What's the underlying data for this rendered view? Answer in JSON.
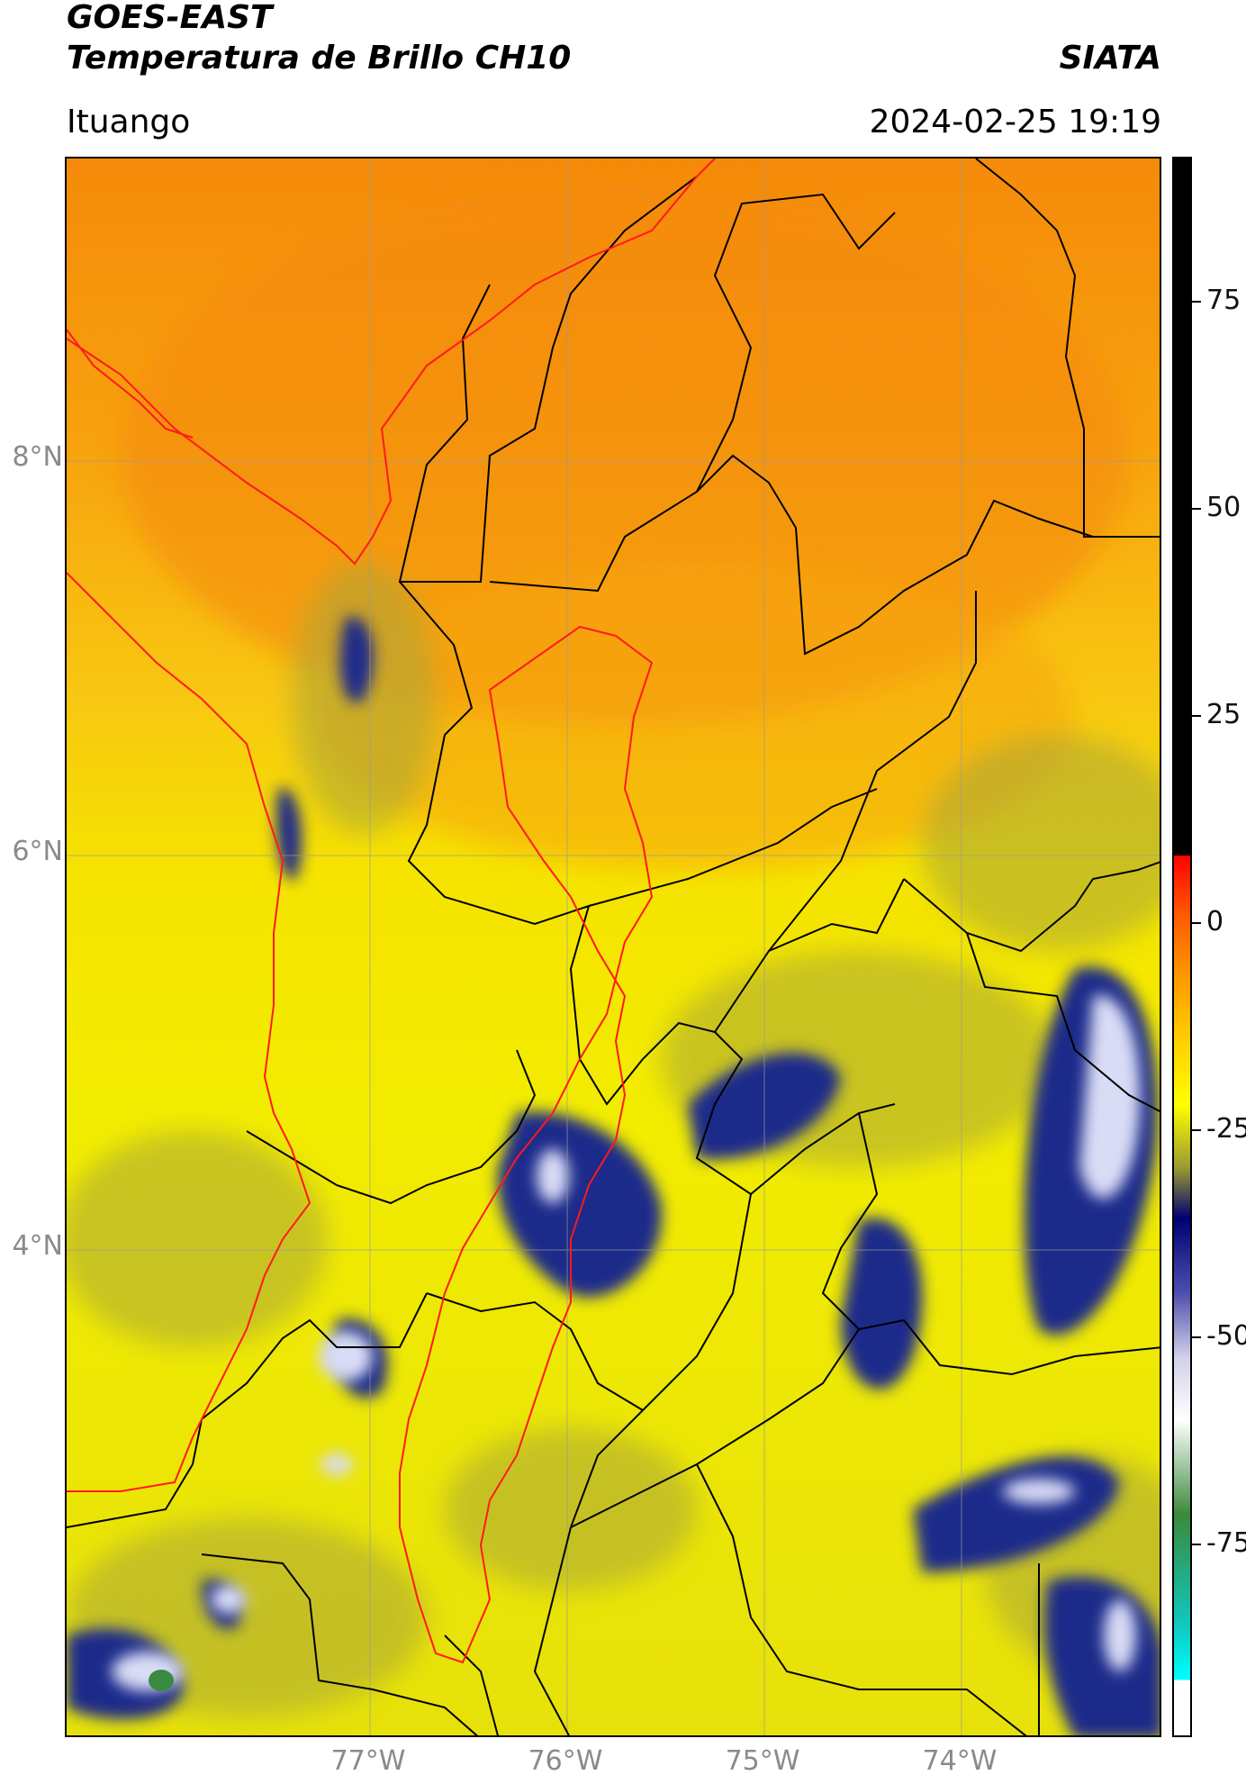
{
  "header": {
    "title_line1": "GOES-EAST",
    "title_line2": "Temperatura de Brillo CH10",
    "brand": "SIATA",
    "region": "Ituango",
    "timestamp": "2024-02-25 19:19"
  },
  "map": {
    "lat_labels": [
      "8°N",
      "6°N",
      "4°N"
    ],
    "lon_labels": [
      "77°W",
      "76°W",
      "75°W",
      "74°W"
    ],
    "colors": {
      "warm": "#f59a0c",
      "mid": "#f5e800",
      "cold": "#1e2b8a",
      "coldest": "#ffffff",
      "basin_outline": "#ff1a1a",
      "borders": "#000000"
    }
  },
  "colorbar": {
    "labels": [
      "75",
      "50",
      "25",
      "0",
      "-25",
      "-50",
      "-75"
    ]
  }
}
